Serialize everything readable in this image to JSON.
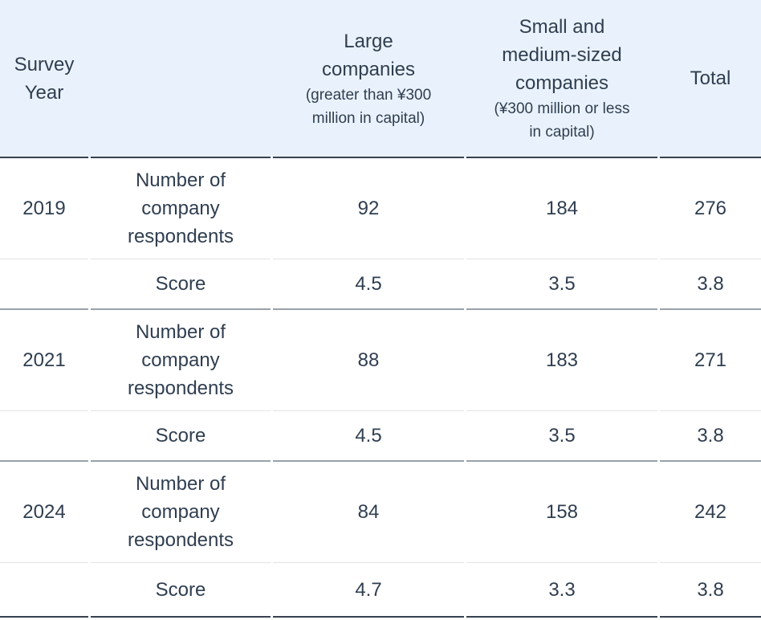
{
  "colors": {
    "header_background": "#e9f2fc",
    "text": "#2f3e50",
    "dark_border": "#37414f",
    "group_border": "#9aa1aa",
    "light_border": "#e3e3e3"
  },
  "table": {
    "header": {
      "survey_year": "Survey Year",
      "large_title": "Large companies",
      "large_sub": "(greater than ¥300 million in capital)",
      "sme_title": "Small and medium-sized companies",
      "sme_sub": "(¥300 million or less in capital)",
      "total": "Total"
    },
    "respondents_label": "Number of company respondents",
    "score_label": "Score",
    "groups": [
      {
        "year": "2019",
        "respondents": [
          "92",
          "184",
          "276"
        ],
        "scores": [
          "4.5",
          "3.5",
          "3.8"
        ]
      },
      {
        "year": "2021",
        "respondents": [
          "88",
          "183",
          "271"
        ],
        "scores": [
          "4.5",
          "3.5",
          "3.8"
        ]
      },
      {
        "year": "2024",
        "respondents": [
          "84",
          "158",
          "242"
        ],
        "scores": [
          "4.7",
          "3.3",
          "3.8"
        ]
      }
    ]
  },
  "chart_data": {
    "type": "table",
    "columns": [
      "Survey Year",
      "Row label",
      "Large companies (greater than ¥300 million in capital)",
      "Small and medium-sized companies (¥300 million or less in capital)",
      "Total"
    ],
    "rows": [
      [
        "2019",
        "Number of company respondents",
        92,
        184,
        276
      ],
      [
        "2019",
        "Score",
        4.5,
        3.5,
        3.8
      ],
      [
        "2021",
        "Number of company respondents",
        88,
        183,
        271
      ],
      [
        "2021",
        "Score",
        4.5,
        3.5,
        3.8
      ],
      [
        "2024",
        "Number of company respondents",
        84,
        158,
        242
      ],
      [
        "2024",
        "Score",
        4.7,
        3.3,
        3.8
      ]
    ]
  }
}
